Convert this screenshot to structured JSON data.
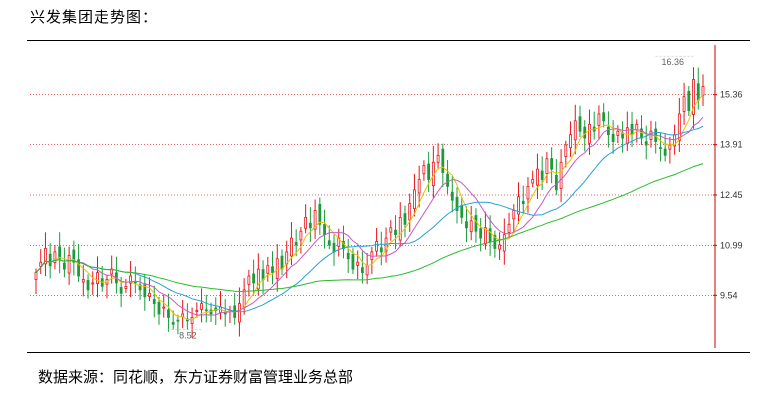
{
  "header": {
    "title": "兴发集团走势图："
  },
  "footer": {
    "source": "数据来源：同花顺，东方证券财富管理业务总部"
  },
  "colors": {
    "up": "#e8141a",
    "down": "#1a9c3a",
    "grid": "#d33",
    "ma5": "#e8c200",
    "ma10": "#c85ac8",
    "ma20": "#2a9fd6",
    "ma60": "#2dbb2d",
    "axis": "#d00000"
  },
  "chart_data": {
    "type": "candlestick",
    "title": "",
    "xlabel": "",
    "ylabel": "",
    "y_ticks": [
      "15.36",
      "13.91",
      "12.45",
      "10.99",
      "9.54"
    ],
    "y_tick_values": [
      15.36,
      13.91,
      12.45,
      10.99,
      9.54
    ],
    "ylim": [
      8.1,
      16.8
    ],
    "annotations": {
      "high": "16.36",
      "low": "8.52"
    },
    "grid": "horizontal dotted",
    "moving_averages": [
      "MA5",
      "MA10",
      "MA20",
      "MA60"
    ],
    "close": [
      10.2,
      10.5,
      10.9,
      10.4,
      10.8,
      10.6,
      10.3,
      10.7,
      10.5,
      10.1,
      10.0,
      9.7,
      9.9,
      10.2,
      9.8,
      10.0,
      10.3,
      9.9,
      9.6,
      9.8,
      10.1,
      9.9,
      9.7,
      9.5,
      9.6,
      9.3,
      9.0,
      9.2,
      8.9,
      8.7,
      8.8,
      9.0,
      8.8,
      8.9,
      9.1,
      9.3,
      9.1,
      9.0,
      9.1,
      9.2,
      9.0,
      9.1,
      8.9,
      9.3,
      9.7,
      10.1,
      9.9,
      10.3,
      10.0,
      10.4,
      10.2,
      10.6,
      10.3,
      10.8,
      11.2,
      11.0,
      11.4,
      11.8,
      11.5,
      12.0,
      11.6,
      11.3,
      11.0,
      10.8,
      11.2,
      10.9,
      10.6,
      10.3,
      10.5,
      10.2,
      10.4,
      10.8,
      11.1,
      10.8,
      11.2,
      11.5,
      11.3,
      11.8,
      11.6,
      12.2,
      12.6,
      12.9,
      13.3,
      12.9,
      13.4,
      13.6,
      13.1,
      12.7,
      12.3,
      12.0,
      11.8,
      11.5,
      11.7,
      11.4,
      11.2,
      11.5,
      11.1,
      10.9,
      11.0,
      11.3,
      11.6,
      12.0,
      12.4,
      12.2,
      12.7,
      12.9,
      13.2,
      12.9,
      13.5,
      13.2,
      12.6,
      13.4,
      13.9,
      14.2,
      14.6,
      14.3,
      14.1,
      14.5,
      14.3,
      14.8,
      14.6,
      14.2,
      14.0,
      14.3,
      14.1,
      14.4,
      14.2,
      14.5,
      14.1,
      13.9,
      14.3,
      14.0,
      13.8,
      13.6,
      13.9,
      14.2,
      14.8,
      15.3,
      14.9,
      15.8,
      15.2,
      15.6
    ]
  }
}
